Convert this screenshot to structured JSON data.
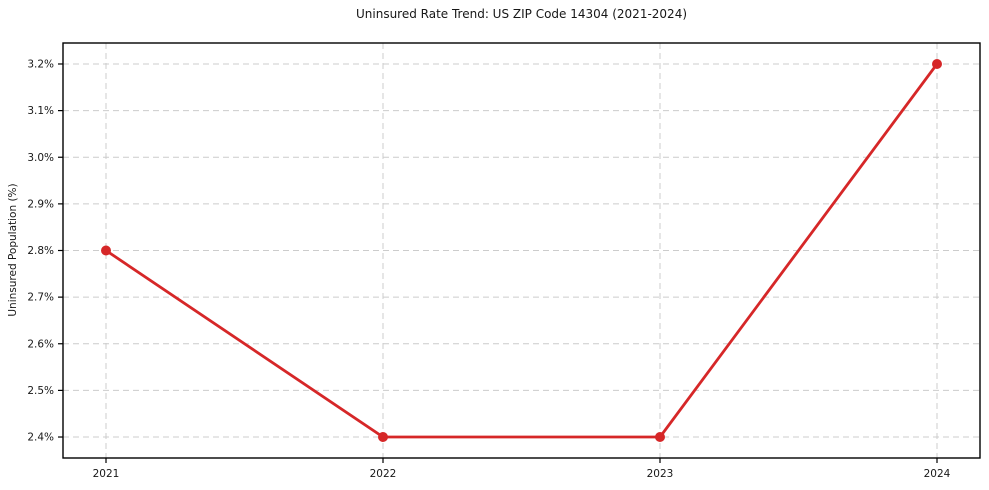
{
  "chart_data": {
    "type": "line",
    "title": "Uninsured Rate Trend: US ZIP Code 14304 (2021-2024)",
    "xlabel": "",
    "ylabel": "Uninsured Population (%)",
    "categories": [
      "2021",
      "2022",
      "2023",
      "2024"
    ],
    "values": [
      2.8,
      2.4,
      2.4,
      3.2
    ],
    "yticks": [
      2.4,
      2.5,
      2.6,
      2.7,
      2.8,
      2.9,
      3.0,
      3.1,
      3.2
    ],
    "ytick_labels": [
      "2.4%",
      "2.5%",
      "2.6%",
      "2.7%",
      "2.8%",
      "2.9%",
      "3.0%",
      "3.1%",
      "3.2%"
    ],
    "ylim": [
      2.355,
      3.245
    ],
    "grid": true,
    "legend": "none",
    "line_color": "#d62728",
    "marker": "circle",
    "grid_color": "#cccccc",
    "axis_color": "#000000",
    "text_color": "#171717"
  }
}
